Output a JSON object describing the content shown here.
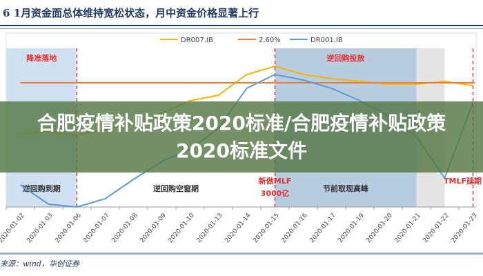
{
  "title": "6   1月资金面总体维持宽松状态，月中资金价格显著上行",
  "source": "来源：wind，华创证券",
  "banner": "合肥疫情补贴政策2020标准/合肥疫情补贴政策2020标准文件",
  "chart_data": {
    "type": "line",
    "title": "",
    "xlabel": "",
    "ylabel": "",
    "ylim": [
      1.6,
      2.85
    ],
    "grid": false,
    "legend_position": "top",
    "categories": [
      "2020-01-02",
      "2020-01-03",
      "2020-01-06",
      "2020-01-07",
      "2020-01-08",
      "2020-01-09",
      "2020-01-10",
      "2020-01-13",
      "2020-01-14",
      "2020-01-15",
      "2020-01-16",
      "2020-01-17",
      "2020-01-19",
      "2020-01-20",
      "2020-01-21",
      "2020-01-22",
      "2020-01-23"
    ],
    "series": [
      {
        "name": "DR007.IB",
        "color": "#f4b400",
        "values": [
          2.23,
          2.25,
          2.22,
          2.26,
          2.31,
          2.38,
          2.47,
          2.51,
          2.66,
          2.72,
          2.66,
          2.63,
          2.61,
          2.59,
          2.59,
          2.61,
          2.58
        ]
      },
      {
        "name": "2.60%",
        "color": "#ed7d31",
        "values": [
          2.6,
          2.6,
          2.6,
          2.6,
          2.6,
          2.6,
          2.6,
          2.6,
          2.6,
          2.6,
          2.6,
          2.6,
          2.6,
          2.6,
          2.6,
          2.6,
          2.6
        ]
      },
      {
        "name": "DR001.IB",
        "color": "#5b9bd5",
        "values": [
          1.86,
          1.72,
          1.64,
          1.76,
          1.9,
          2.03,
          2.12,
          2.27,
          2.56,
          2.66,
          2.62,
          2.56,
          2.47,
          2.36,
          2.21,
          1.91,
          2.46
        ]
      }
    ],
    "regions": [
      {
        "from": "2020-01-02",
        "to": "2020-01-06",
        "color": "#cfe0f1",
        "top_label": "降准落地",
        "bottom_label": "逆回购到期"
      },
      {
        "from": "2020-01-06",
        "to": "2020-01-15",
        "color": "#ffffff",
        "top_label": "",
        "bottom_label": "逆回购空窗期"
      },
      {
        "from": "2020-01-15",
        "to": "2020-01-21",
        "color": "#b8cce0",
        "top_label": "逆回购投放",
        "bottom_label": "节前取现高峰"
      },
      {
        "from": "2020-01-21",
        "to": "2020-01-22",
        "color": "#e4e4e4",
        "top_label": "",
        "bottom_label": ""
      }
    ],
    "markers": [
      {
        "at": "2020-01-06",
        "label": ""
      },
      {
        "at": "2020-01-15",
        "label": "新做MLF 3000亿"
      },
      {
        "at": "2020-01-23",
        "label": "TMLF延期"
      }
    ]
  }
}
